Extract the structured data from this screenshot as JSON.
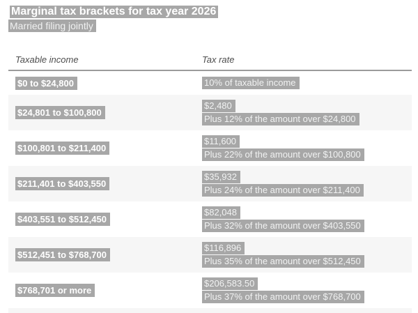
{
  "page": {
    "title": "Marginal tax brackets for tax year 2026",
    "subtitle": "Married filing jointly"
  },
  "table": {
    "columns": [
      "Taxable income",
      "Tax rate"
    ],
    "rows": [
      {
        "income": "$0 to $24,800",
        "rate_lines": [
          "10% of taxable income"
        ]
      },
      {
        "income": "$24,801 to $100,800",
        "rate_lines": [
          "$2,480",
          "Plus 12% of the amount over $24,800"
        ]
      },
      {
        "income": "$100,801 to $211,400",
        "rate_lines": [
          "$11,600",
          "Plus 22% of the amount over $100,800"
        ]
      },
      {
        "income": "$211,401 to $403,550",
        "rate_lines": [
          "$35,932",
          "Plus 24% of the amount over $211,400"
        ]
      },
      {
        "income": "$403,551 to $512,450",
        "rate_lines": [
          "$82,048",
          "Plus 32% of the amount over $403,550"
        ]
      },
      {
        "income": "$512,451 to $768,700",
        "rate_lines": [
          "$116,896",
          "Plus 35% of the amount over $512,450"
        ]
      },
      {
        "income": "$768,701 or more",
        "rate_lines": [
          "$206,583.50",
          "Plus 37% of the amount over $768,700"
        ]
      }
    ]
  },
  "colors": {
    "highlight": "#a7a7a7",
    "highlight_text": "#ffffff",
    "alt_row_background": "#f6f6f6",
    "divider": "#9b9b9b",
    "header_text": "#4d4d4d"
  }
}
